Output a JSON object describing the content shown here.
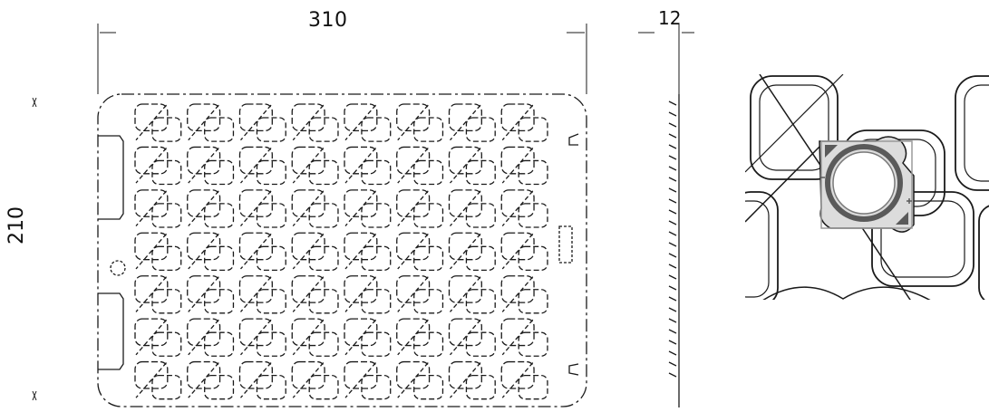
{
  "dimensions": {
    "width": "310",
    "height": "210",
    "thickness": "12"
  },
  "views": [
    "top-view",
    "side-view",
    "detail-view"
  ],
  "tray": {
    "columns": 8,
    "rows": 7
  },
  "colors": {
    "line": "#1a1a1a",
    "detail_fill": "#dcdcdc",
    "detail_ring": "#5a5a5a",
    "background": "#ffffff"
  }
}
